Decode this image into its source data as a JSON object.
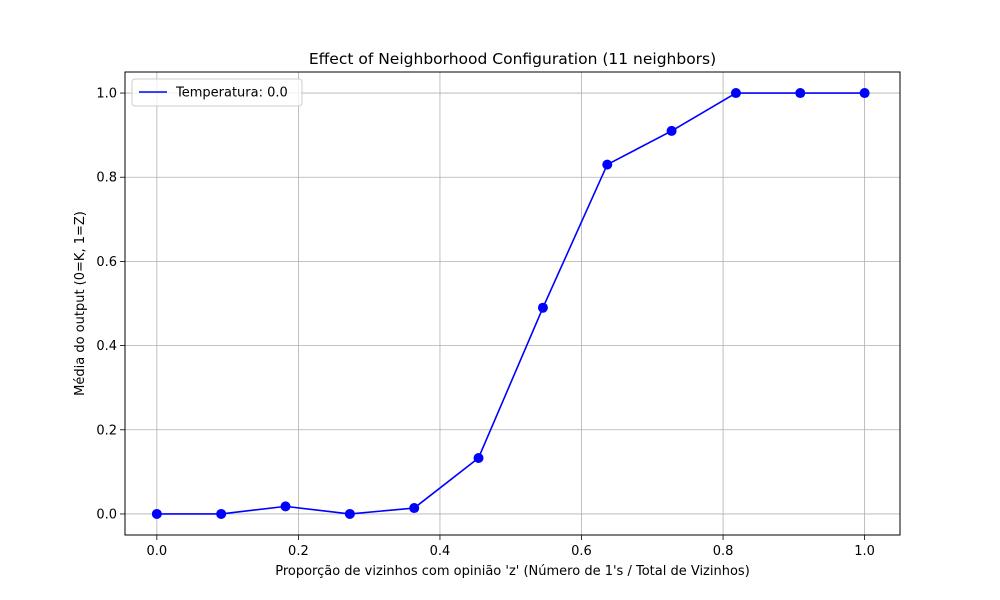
{
  "chart_data": {
    "type": "line",
    "title": "Effect of Neighborhood Configuration (11 neighbors)",
    "xlabel": "Proporção de vizinhos com opinião 'z' (Número de 1's / Total de Vizinhos)",
    "ylabel": "Média do output (0=K, 1=Z)",
    "xlim": [
      -0.045,
      1.05
    ],
    "ylim": [
      -0.05,
      1.05
    ],
    "xticks": [
      0.0,
      0.2,
      0.4,
      0.6,
      0.8,
      1.0
    ],
    "xtick_labels": [
      "0.0",
      "0.2",
      "0.4",
      "0.6",
      "0.8",
      "1.0"
    ],
    "yticks": [
      0.0,
      0.2,
      0.4,
      0.6,
      0.8,
      1.0
    ],
    "ytick_labels": [
      "0.0",
      "0.2",
      "0.4",
      "0.6",
      "0.8",
      "1.0"
    ],
    "grid": true,
    "legend_position": "top-left",
    "series": [
      {
        "name": "Temperatura: 0.0",
        "color": "#0000ff",
        "marker": "circle",
        "x": [
          0.0,
          0.0909,
          0.1818,
          0.2727,
          0.3636,
          0.4545,
          0.5455,
          0.6364,
          0.7273,
          0.8182,
          0.9091,
          1.0
        ],
        "y": [
          0.0,
          0.0,
          0.018,
          0.0,
          0.014,
          0.133,
          0.49,
          0.83,
          0.91,
          1.0,
          1.0,
          1.0
        ]
      }
    ]
  }
}
